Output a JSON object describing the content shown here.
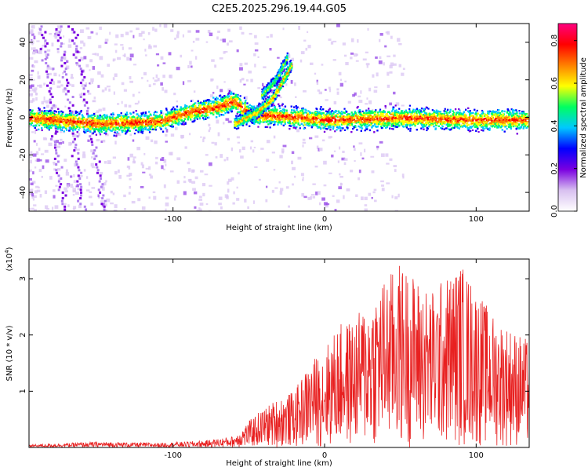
{
  "page_title": "C2E5.2025.296.19.44.G05",
  "chart_data": [
    {
      "type": "heatmap",
      "xlabel": "Height of straight line (km)",
      "ylabel": "Frequency (Hz)",
      "xlim": [
        -195,
        135
      ],
      "ylim": [
        -50,
        50
      ],
      "xticks": [
        -100,
        0,
        100
      ],
      "yticks": [
        -40,
        -20,
        0,
        20,
        40
      ],
      "colorbar": {
        "label": "Normalized spectral amplitude",
        "range": [
          0,
          0.88
        ],
        "ticks": [
          0.0,
          0.2,
          0.4,
          0.6,
          0.8
        ],
        "tick_labels": [
          "0.0",
          "0.2",
          "0.4",
          "0.6",
          "0.8"
        ],
        "colormap": [
          "#ffffff",
          "#d8c0f0",
          "#7a00e0",
          "#0000ff",
          "#00c8ff",
          "#00ff60",
          "#ffff00",
          "#ff8000",
          "#ff0000",
          "#ff0080"
        ]
      },
      "features": {
        "main_band": [
          [
            -195,
            0
          ],
          [
            -150,
            -3
          ],
          [
            -110,
            -2
          ],
          [
            -90,
            3
          ],
          [
            -70,
            6
          ],
          [
            -60,
            9
          ],
          [
            -50,
            2
          ],
          [
            -30,
            1
          ],
          [
            0,
            -1
          ],
          [
            50,
            0
          ],
          [
            100,
            -1
          ],
          [
            135,
            -1
          ]
        ],
        "branch": [
          [
            -60,
            -3
          ],
          [
            -45,
            3
          ],
          [
            -35,
            10
          ],
          [
            -25,
            24
          ],
          [
            -22,
            29
          ]
        ],
        "branch_upper": [
          [
            -42,
            12
          ],
          [
            -32,
            21
          ],
          [
            -25,
            32
          ]
        ]
      }
    },
    {
      "type": "line",
      "xlabel": "Height of straight line (km)",
      "ylabel": "SNR (10 * v/v)",
      "multiplier": "(x10",
      "multiplier_exp": "4",
      "multiplier_close": ")",
      "xlim": [
        -195,
        135
      ],
      "ylim": [
        0,
        3.35
      ],
      "xticks": [
        -100,
        0,
        100
      ],
      "yticks": [
        1,
        2,
        3
      ],
      "series": [
        {
          "name": "SNR",
          "color": "#e82020",
          "envelope": [
            [
              -195,
              0.05
            ],
            [
              -150,
              0.1
            ],
            [
              -110,
              0.08
            ],
            [
              -80,
              0.12
            ],
            [
              -60,
              0.2
            ],
            [
              -45,
              0.6
            ],
            [
              -30,
              0.9
            ],
            [
              -20,
              1.0
            ],
            [
              -10,
              1.5
            ],
            [
              0,
              1.8
            ],
            [
              10,
              2.2
            ],
            [
              20,
              2.3
            ],
            [
              35,
              2.9
            ],
            [
              50,
              3.3
            ],
            [
              70,
              2.8
            ],
            [
              90,
              3.3
            ],
            [
              110,
              2.4
            ],
            [
              120,
              2.2
            ],
            [
              135,
              1.9
            ]
          ]
        }
      ]
    }
  ]
}
